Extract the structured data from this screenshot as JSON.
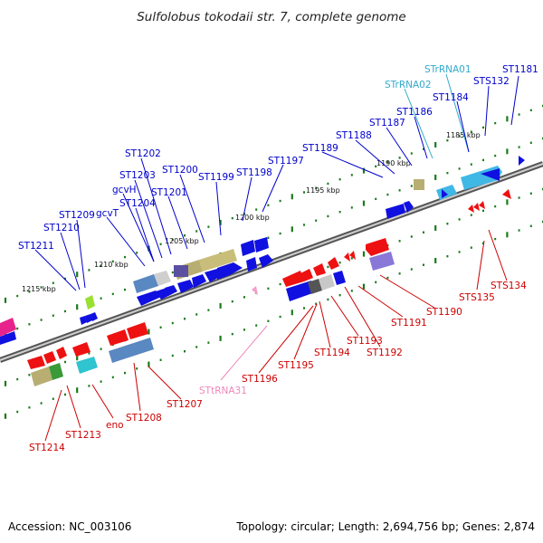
{
  "title": "Sulfolobus tokodaii str. 7, complete genome",
  "footer": {
    "accession": "Accession: NC_003106",
    "summary": "Topology: circular; Length: 2,694,756 bp; Genes: 2,874"
  },
  "colors": {
    "forward_label": "#0000cc",
    "reverse_label": "#cc0000",
    "rna_forward_label": "#33aacc",
    "rna_reverse_label": "#ee88bb",
    "backbone": "#666666",
    "tick": "#1a7a1a"
  },
  "scale_labels": [
    "1185 kbp",
    "1190 kbp",
    "1195 kbp",
    "1200 kbp",
    "1205 kbp",
    "1210 kbp",
    "1215 kbp"
  ],
  "forward_labels": [
    "ST1181",
    "STS132",
    "STrRNA01",
    "ST1184",
    "STrRNA02",
    "ST1186",
    "ST1187",
    "ST1188",
    "ST1189",
    "ST1197",
    "ST1198",
    "ST1199",
    "ST1200",
    "ST1201",
    "ST1202",
    "ST1203",
    "gcvH",
    "ST1204",
    "gcvT",
    "ST1209",
    "ST1210",
    "ST1211"
  ],
  "reverse_labels": [
    "STS134",
    "STS135",
    "ST1190",
    "ST1191",
    "ST1192",
    "ST1193",
    "ST1194",
    "ST1195",
    "ST1196",
    "STtRNA31",
    "ST1207",
    "ST1208",
    "eno",
    "ST1213",
    "ST1214"
  ]
}
